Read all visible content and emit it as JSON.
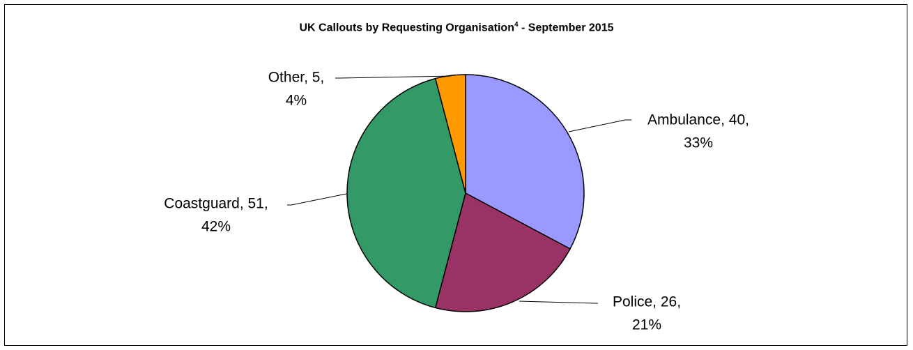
{
  "chart_data": {
    "type": "pie",
    "title": "UK Callouts by Requesting Organisation",
    "title_superscript": "4",
    "title_suffix": " - September 2015",
    "slices": [
      {
        "label": "Ambulance",
        "value": 40,
        "percent": "33%",
        "color": "#9999ff"
      },
      {
        "label": "Police",
        "value": 26,
        "percent": "21%",
        "color": "#993366"
      },
      {
        "label": "Coastguard",
        "value": 51,
        "percent": "42%",
        "color": "#339966"
      },
      {
        "label": "Other",
        "value": 5,
        "percent": "4%",
        "color": "#ff9900"
      }
    ],
    "legend": "none"
  }
}
